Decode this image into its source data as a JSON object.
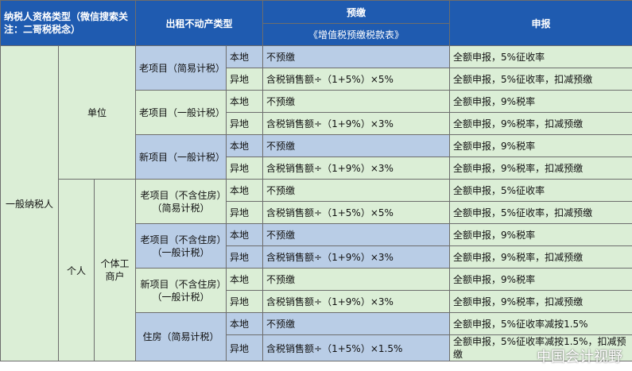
{
  "header": {
    "taxpayer_type": "纳税人资格类型（微信搜索关注：二哥税税念）",
    "property_type": "出租不动产类型",
    "prepay": "预缴",
    "prepay_form": "《增值税预缴税款表》",
    "declare": "申报"
  },
  "groups": {
    "general": "一般纳税人",
    "unit": "单位",
    "person": "个人",
    "individual_business": "个体工商户"
  },
  "rows": {
    "old_simple": {
      "label": "老项目（简易计税）",
      "local": {
        "loc": "本地",
        "prepay": "不预缴",
        "declare": "全额申报，5%征收率"
      },
      "remote": {
        "loc": "异地",
        "prepay": "含税销售额÷（1+5%）×5%",
        "declare": "全额申报，5%征收率，扣减预缴"
      }
    },
    "old_general": {
      "label": "老项目（一般计税）",
      "local": {
        "loc": "本地",
        "prepay": "不预缴",
        "declare": "全额申报，9%税率"
      },
      "remote": {
        "loc": "异地",
        "prepay": "含税销售额÷（1+9%）×3%",
        "declare": "全额申报，9%税率，扣减预缴"
      }
    },
    "new_general": {
      "label": "新项目（一般计税）",
      "local": {
        "loc": "本地",
        "prepay": "不预缴",
        "declare": "全额申报，9%税率"
      },
      "remote": {
        "loc": "异地",
        "prepay": "含税销售额÷（1+9%）×3%",
        "declare": "全额申报，9%税率，扣减预缴"
      }
    },
    "old_nonres_simple": {
      "label": "老项目（不含住房）（简易计税）",
      "local": {
        "loc": "本地",
        "prepay": "不预缴",
        "declare": "全额申报，5%征收率"
      },
      "remote": {
        "loc": "异地",
        "prepay": "含税销售额÷（1+5%）×5%",
        "declare": "全额申报，5%征收率，扣减预缴"
      }
    },
    "old_nonres_general": {
      "label": "老项目（不含住房）（一般计税）",
      "local": {
        "loc": "本地",
        "prepay": "不预缴",
        "declare": "全额申报，9%税率"
      },
      "remote": {
        "loc": "异地",
        "prepay": "含税销售额÷（1+9%）×3%",
        "declare": "全额申报，9%税率，扣减预缴"
      }
    },
    "new_nonres_general": {
      "label": "新项目（不含住房）（一般计税）",
      "local": {
        "loc": "本地",
        "prepay": "不预缴",
        "declare": "全额申报，9%税率"
      },
      "remote": {
        "loc": "异地",
        "prepay": "含税销售额÷（1+9%）×3%",
        "declare": "全额申报，9%税率，扣减预缴"
      }
    },
    "housing_simple": {
      "label": "住房（简易计税）",
      "local": {
        "loc": "本地",
        "prepay": "不预缴",
        "declare": "全额申报，5%征收率减按1.5%"
      },
      "remote": {
        "loc": "异地",
        "prepay": "含税销售额÷（1+5%）×1.5%",
        "declare": "全额申报，5%征收率减按1.5%，扣减预缴"
      }
    }
  },
  "watermark": "中国会计视野"
}
